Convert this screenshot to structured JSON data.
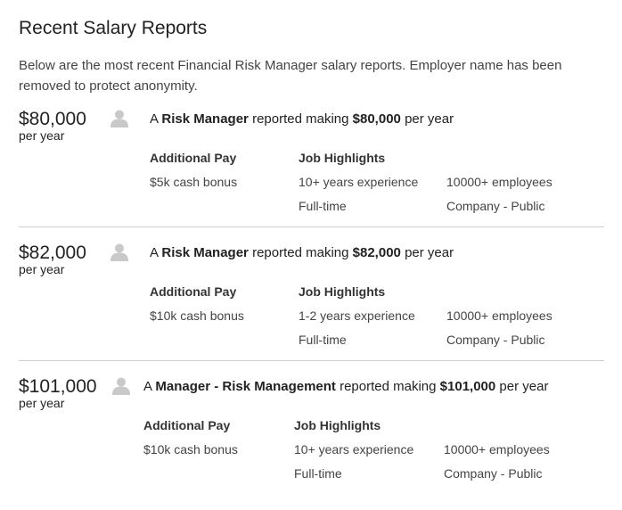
{
  "section": {
    "title": "Recent Salary Reports",
    "intro": "Below are the most recent Financial Risk Manager salary reports. Employer name has been removed to protect anonymity."
  },
  "labels": {
    "additional_pay": "Additional Pay",
    "job_highlights": "Job Highlights",
    "per_year": "per year",
    "headline_prefix": "A",
    "headline_mid": "reported making",
    "headline_suffix": "per year"
  },
  "reports": [
    {
      "amount": "$80,000",
      "job_title": "Risk Manager",
      "amount_bold": "$80,000",
      "additional_pay": "$5k cash bonus",
      "experience": "10+ years experience",
      "employment_type": "Full-time",
      "company_size": "10000+ employees",
      "company_type": "Company - Public"
    },
    {
      "amount": "$82,000",
      "job_title": "Risk Manager",
      "amount_bold": "$82,000",
      "additional_pay": "$10k cash bonus",
      "experience": "1-2 years experience",
      "employment_type": "Full-time",
      "company_size": "10000+ employees",
      "company_type": "Company - Public"
    },
    {
      "amount": "$101,000",
      "job_title": "Manager - Risk Management",
      "amount_bold": "$101,000",
      "additional_pay": "$10k cash bonus",
      "experience": "10+ years experience",
      "employment_type": "Full-time",
      "company_size": "10000+ employees",
      "company_type": "Company - Public"
    }
  ],
  "icons": {
    "avatar": "user-avatar-icon"
  },
  "colors": {
    "avatar": "#c9c9c9",
    "divider": "#cfcfcf",
    "text": "#222222"
  }
}
